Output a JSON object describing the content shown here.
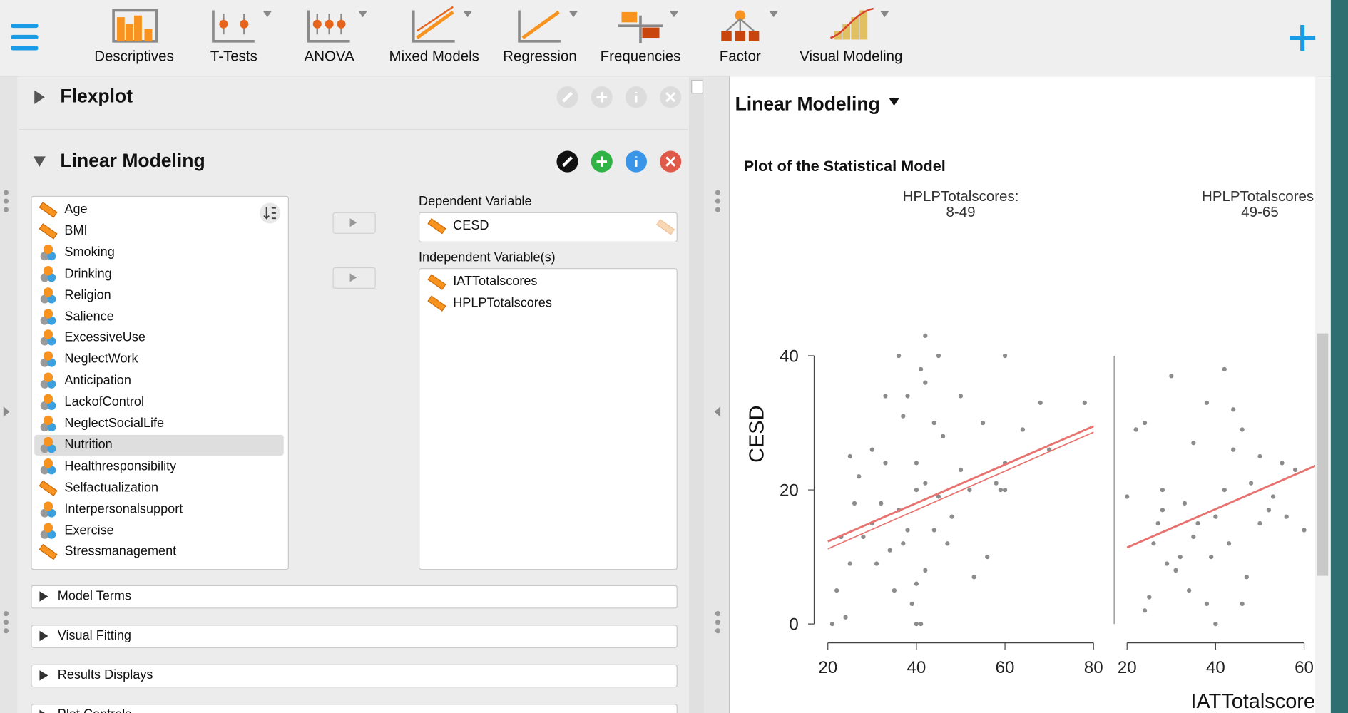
{
  "toolbar": {
    "items": [
      "Descriptives",
      "T-Tests",
      "ANOVA",
      "Mixed Models",
      "Regression",
      "Frequencies",
      "Factor",
      "Visual Modeling"
    ]
  },
  "analyses": [
    {
      "title": "Flexplot",
      "expanded": false
    },
    {
      "title": "Linear Modeling",
      "expanded": true
    }
  ],
  "variables": [
    {
      "name": "Age",
      "type": "scale"
    },
    {
      "name": "BMI",
      "type": "scale"
    },
    {
      "name": "Smoking",
      "type": "nominal"
    },
    {
      "name": "Drinking",
      "type": "nominal"
    },
    {
      "name": "Religion",
      "type": "nominal"
    },
    {
      "name": "Salience",
      "type": "nominal"
    },
    {
      "name": "ExcessiveUse",
      "type": "nominal"
    },
    {
      "name": "NeglectWork",
      "type": "nominal"
    },
    {
      "name": "Anticipation",
      "type": "nominal"
    },
    {
      "name": "LackofControl",
      "type": "nominal"
    },
    {
      "name": "NeglectSocialLife",
      "type": "nominal"
    },
    {
      "name": "Nutrition",
      "type": "nominal",
      "selected": true
    },
    {
      "name": "Healthresponsibility",
      "type": "nominal"
    },
    {
      "name": "Selfactualization",
      "type": "scale"
    },
    {
      "name": "Interpersonalsupport",
      "type": "nominal"
    },
    {
      "name": "Exercise",
      "type": "nominal"
    },
    {
      "name": "Stressmanagement",
      "type": "scale"
    }
  ],
  "dependent": {
    "label": "Dependent Variable",
    "variables": [
      {
        "name": "CESD",
        "type": "scale"
      }
    ]
  },
  "independent": {
    "label": "Independent Variable(s)",
    "variables": [
      {
        "name": "IATTotalscores",
        "type": "scale"
      },
      {
        "name": "HPLPTotalscores",
        "type": "scale"
      }
    ]
  },
  "sections": [
    "Model Terms",
    "Visual Fitting",
    "Results Displays",
    "Plot Controls"
  ],
  "results": {
    "title": "Linear Modeling",
    "plot": {
      "type": "scatter",
      "title": "Plot of the Statistical Model",
      "y_label": "CESD",
      "x_label": "IATTotalscores",
      "ylim": [
        0,
        40
      ],
      "yticks": [
        0,
        20,
        40
      ],
      "point_color": "#000000",
      "line_color": "#e8726f",
      "panels": [
        {
          "label": [
            "HPLPTotalscores:",
            "8-49"
          ],
          "xlim": [
            20,
            80
          ],
          "xticks": [
            20,
            40,
            60,
            80
          ],
          "points": {
            "x": [
              42,
              36,
              45,
              60,
              41,
              42,
              68,
              33,
              38,
              78,
              64,
              55,
              37,
              44,
              50,
              30,
              33,
              40,
              46,
              25,
              27,
              50,
              60,
              70,
              58,
              59,
              60,
              40,
              42,
              36,
              32,
              30,
              28,
              38,
              44,
              34,
              31,
              25,
              47,
              40,
              42,
              35,
              40,
              41,
              22,
              24,
              21,
              53,
              56,
              48,
              23,
              26,
              45,
              37,
              39,
              52
            ],
            "y": [
              43,
              40,
              40,
              40,
              38,
              36,
              33,
              34,
              34,
              33,
              29,
              30,
              31,
              30,
              34,
              26,
              24,
              24,
              28,
              25,
              22,
              23,
              24,
              26,
              21,
              20,
              20,
              20,
              21,
              17,
              18,
              15,
              13,
              14,
              14,
              11,
              9,
              9,
              12,
              6,
              8,
              5,
              0,
              0,
              5,
              1,
              0,
              7,
              10,
              16,
              13,
              18,
              19,
              12,
              3,
              20
            ]
          },
          "fits": [
            {
              "x": [
                20,
                80
              ],
              "y": [
                12.3,
                29.5
              ]
            },
            {
              "x": [
                20,
                80
              ],
              "y": [
                11.2,
                28.6
              ]
            }
          ]
        },
        {
          "label": [
            "HPLPTotalscores:",
            "49-65"
          ],
          "xlim": [
            20,
            80
          ],
          "xticks": [
            20,
            40,
            60
          ],
          "points": {
            "x": [
              22,
              30,
              42,
              38,
              44,
              24,
              20,
              28,
              33,
              35,
              50,
              55,
              58,
              46,
              44,
              36,
              40,
              42,
              26,
              29,
              32,
              34,
              40,
              38,
              46,
              47,
              25,
              24,
              31,
              50,
              52,
              48,
              56,
              60,
              27,
              39,
              43,
              35,
              28,
              53
            ],
            "y": [
              29,
              37,
              38,
              33,
              32,
              30,
              19,
              20,
              18,
              27,
              25,
              24,
              23,
              29,
              26,
              15,
              16,
              20,
              12,
              9,
              10,
              5,
              0,
              3,
              3,
              7,
              4,
              2,
              8,
              15,
              17,
              21,
              16,
              14,
              15,
              10,
              12,
              13,
              17,
              19
            ]
          },
          "fits": [
            {
              "x": [
                20,
                80
              ],
              "y": [
                11.4,
                28.6
              ]
            }
          ]
        }
      ]
    }
  }
}
